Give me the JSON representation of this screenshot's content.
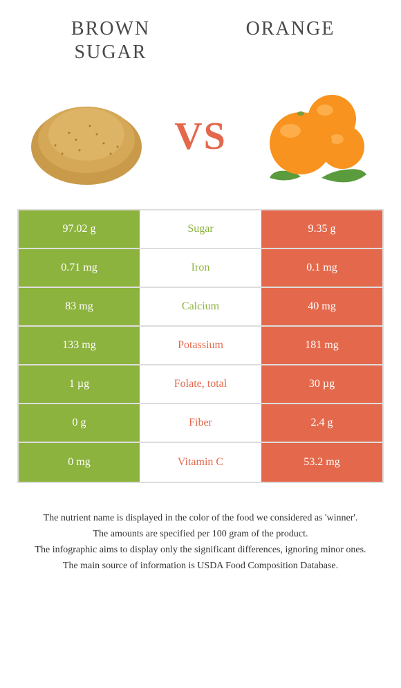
{
  "header": {
    "left_title_line1": "BROWN",
    "left_title_line2": "SUGAR",
    "right_title": "ORANGE"
  },
  "vs_label": "VS",
  "colors": {
    "left": "#8db33f",
    "right": "#e4694c",
    "border": "#dddddd",
    "background": "#ffffff",
    "text": "#333333",
    "header_text": "#494949",
    "sugar_brown": "#c89a4a",
    "orange_fill": "#f7931e",
    "leaf_green": "#5a9b3e"
  },
  "table": {
    "rows": [
      {
        "left": "97.02 g",
        "label": "Sugar",
        "right": "9.35 g",
        "winner": "left"
      },
      {
        "left": "0.71 mg",
        "label": "Iron",
        "right": "0.1 mg",
        "winner": "left"
      },
      {
        "left": "83 mg",
        "label": "Calcium",
        "right": "40 mg",
        "winner": "left"
      },
      {
        "left": "133 mg",
        "label": "Potassium",
        "right": "181 mg",
        "winner": "right"
      },
      {
        "left": "1 µg",
        "label": "Folate, total",
        "right": "30 µg",
        "winner": "right"
      },
      {
        "left": "0 g",
        "label": "Fiber",
        "right": "2.4 g",
        "winner": "right"
      },
      {
        "left": "0 mg",
        "label": "Vitamin C",
        "right": "53.2 mg",
        "winner": "right"
      }
    ]
  },
  "footnotes": [
    "The nutrient name is displayed in the color of the food we considered as 'winner'.",
    "The amounts are specified per 100 gram of the product.",
    "The infographic aims to display only the significant differences, ignoring minor ones.",
    "The main source of information is USDA Food Composition Database."
  ]
}
